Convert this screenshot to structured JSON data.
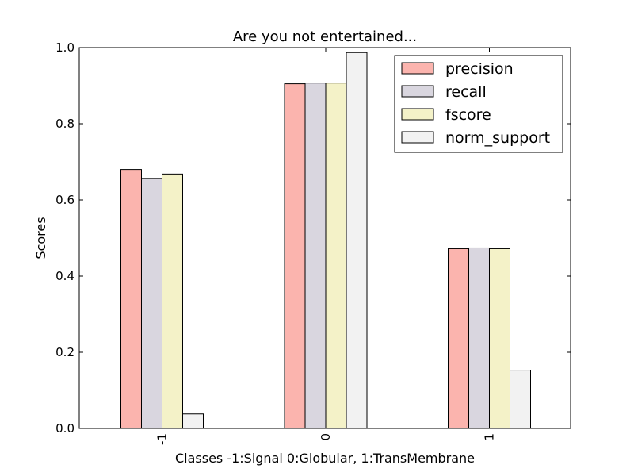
{
  "chart_data": {
    "type": "bar",
    "title": "Are you not entertained...",
    "xlabel": "Classes -1:Signal 0:Globular, 1:TransMembrane",
    "ylabel": "Scores",
    "categories": [
      "-1",
      "0",
      "1"
    ],
    "ylim": [
      0,
      1.0
    ],
    "yticks": [
      "0.0",
      "0.2",
      "0.4",
      "0.6",
      "0.8",
      "1.0"
    ],
    "grid": false,
    "legend_position": "top-right",
    "series": [
      {
        "name": "precision",
        "color": "#fbb4ae",
        "values": [
          0.68,
          0.905,
          0.472
        ]
      },
      {
        "name": "recall",
        "color": "#d9d6df",
        "values": [
          0.656,
          0.907,
          0.474
        ]
      },
      {
        "name": "fscore",
        "color": "#f4f2c8",
        "values": [
          0.668,
          0.907,
          0.472
        ]
      },
      {
        "name": "norm_support",
        "color": "#f2f2f2",
        "values": [
          0.038,
          0.987,
          0.153
        ]
      }
    ]
  }
}
